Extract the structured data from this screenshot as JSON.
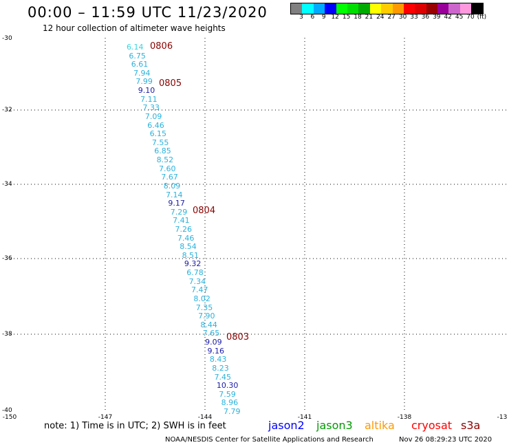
{
  "header": {
    "title": "00:00 – 11:59 UTC 11/23/2020",
    "subtitle": "12 hour collection of altimeter wave heights"
  },
  "colorbar": {
    "colors": [
      "#808080",
      "#00ffff",
      "#00aaff",
      "#0000ff",
      "#00ff00",
      "#00dd00",
      "#00aa00",
      "#ffff00",
      "#ffcc00",
      "#ff9900",
      "#ff0000",
      "#dd0000",
      "#990000",
      "#990099",
      "#cc66cc",
      "#ff99dd",
      "#000000"
    ],
    "labels": [
      "3",
      "6",
      "9",
      "12",
      "15",
      "18",
      "21",
      "24",
      "27",
      "30",
      "33",
      "36",
      "39",
      "42",
      "45",
      "70",
      "(ft)"
    ]
  },
  "map": {
    "lat_labels": [
      "-30",
      "-32",
      "-34",
      "-36",
      "-38",
      "-40"
    ],
    "lon_labels": [
      "-150",
      "-147",
      "-144",
      "-141",
      "-138",
      "-13"
    ]
  },
  "tracks": [
    {
      "v": "6.14",
      "c": "cyan"
    },
    {
      "v": "6.75",
      "c": "sky"
    },
    {
      "v": "6.61",
      "c": "sky"
    },
    {
      "v": "7.94",
      "c": "sky"
    },
    {
      "v": "7.99",
      "c": "sky"
    },
    {
      "v": "9.10",
      "c": "blue"
    },
    {
      "v": "7.11",
      "c": "sky"
    },
    {
      "v": "7.33",
      "c": "sky"
    },
    {
      "v": "7.09",
      "c": "sky"
    },
    {
      "v": "6.46",
      "c": "sky"
    },
    {
      "v": "6.15",
      "c": "sky"
    },
    {
      "v": "7.55",
      "c": "sky"
    },
    {
      "v": "6.85",
      "c": "sky"
    },
    {
      "v": "8.52",
      "c": "sky"
    },
    {
      "v": "7.60",
      "c": "sky"
    },
    {
      "v": "7.67",
      "c": "sky"
    },
    {
      "v": "8.09",
      "c": "sky"
    },
    {
      "v": "7.14",
      "c": "sky"
    },
    {
      "v": "9.17",
      "c": "blue"
    },
    {
      "v": "7.29",
      "c": "sky"
    },
    {
      "v": "7.41",
      "c": "sky"
    },
    {
      "v": "7.26",
      "c": "sky"
    },
    {
      "v": "7.46",
      "c": "sky"
    },
    {
      "v": "8.54",
      "c": "sky"
    },
    {
      "v": "8.51",
      "c": "sky"
    },
    {
      "v": "9.32",
      "c": "blue"
    },
    {
      "v": "6.78",
      "c": "sky"
    },
    {
      "v": "7.34",
      "c": "sky"
    },
    {
      "v": "7.47",
      "c": "sky"
    },
    {
      "v": "8.02",
      "c": "sky"
    },
    {
      "v": "7.35",
      "c": "sky"
    },
    {
      "v": "7.90",
      "c": "sky"
    },
    {
      "v": "8.44",
      "c": "sky"
    },
    {
      "v": "7.65",
      "c": "sky"
    },
    {
      "v": "9.09",
      "c": "blue"
    },
    {
      "v": "9.16",
      "c": "blue"
    },
    {
      "v": "8.43",
      "c": "sky"
    },
    {
      "v": "8.23",
      "c": "sky"
    },
    {
      "v": "7.45",
      "c": "sky"
    },
    {
      "v": "10.30",
      "c": "blue"
    },
    {
      "v": "7.59",
      "c": "sky"
    },
    {
      "v": "8.96",
      "c": "sky"
    },
    {
      "v": "7.79",
      "c": "sky"
    }
  ],
  "time_tags": [
    "0806",
    "0805",
    "0804",
    "0803"
  ],
  "footer": {
    "note": "note: 1) Time is in UTC; 2) SWH is in feet",
    "satellites": [
      {
        "name": "jason2",
        "color": "#0000ff"
      },
      {
        "name": "jason3",
        "color": "#009900"
      },
      {
        "name": "altika",
        "color": "#ff9900"
      },
      {
        "name": "cryosat",
        "color": "#ff0000"
      },
      {
        "name": "s3a",
        "color": "#8b0000"
      }
    ],
    "credit": "NOAA/NESDIS Center for Satellite Applications and Research",
    "timestamp": "Nov 26 08:29:23 UTC 2020"
  }
}
